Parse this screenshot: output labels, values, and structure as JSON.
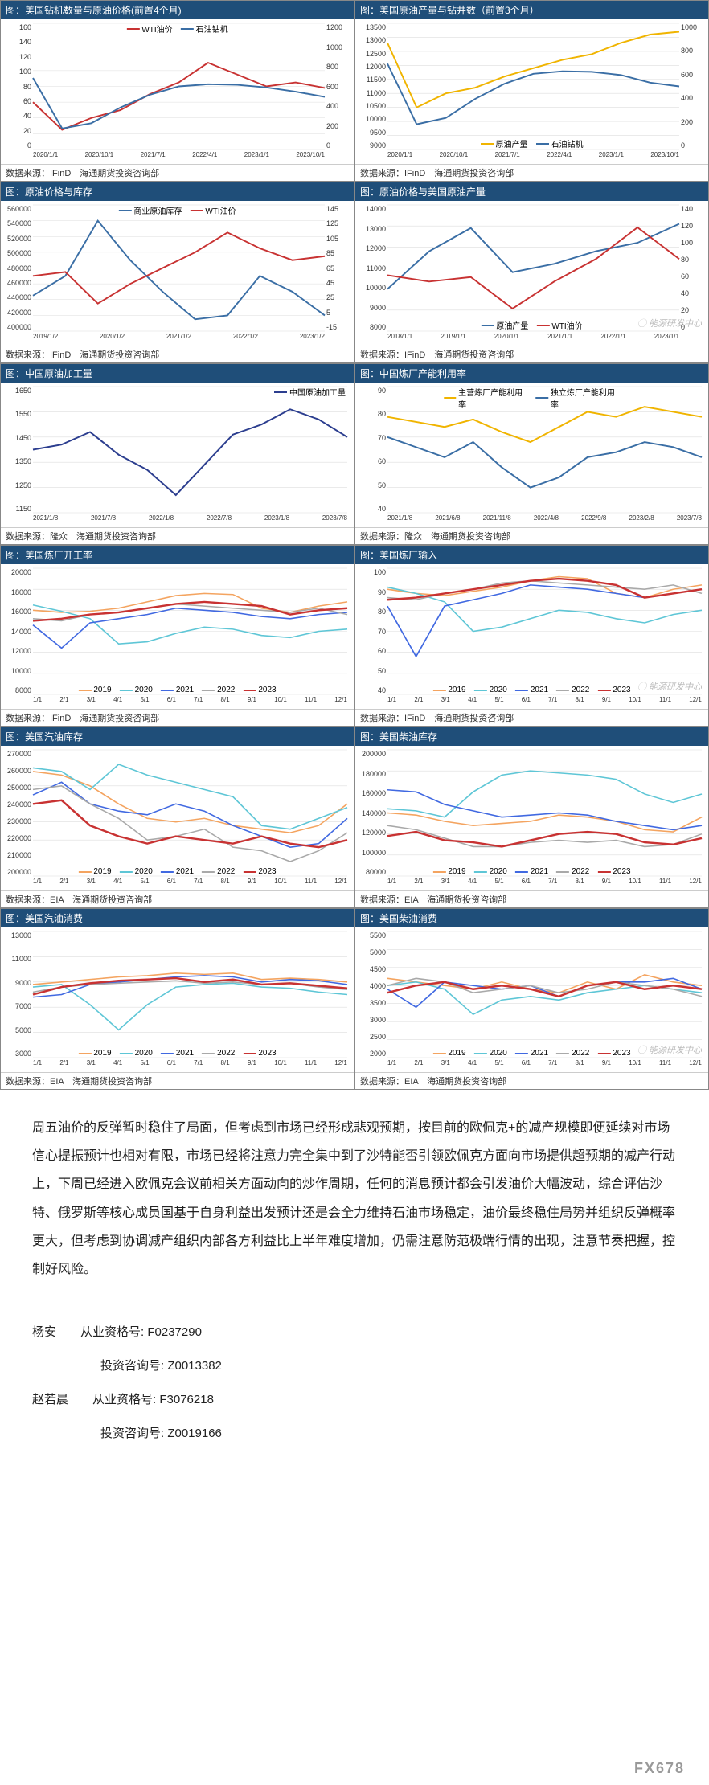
{
  "common": {
    "source_ifind": "数据来源：IFinD　海通期货投资咨询部",
    "source_longzhong": "数据来源：隆众　海通期货投资咨询部",
    "source_eia": "数据来源：EIA　海通期货投资咨询部",
    "watermark": "能源研发中心",
    "fx_watermark": "FX678",
    "months": [
      "1/1",
      "2/1",
      "3/1",
      "4/1",
      "5/1",
      "6/1",
      "7/1",
      "8/1",
      "9/1",
      "10/1",
      "11/1",
      "12/1"
    ],
    "years_legend": {
      "2019": "#f4a460",
      "2020": "#5ec6d6",
      "2021": "#4169e1",
      "2022": "#a9a9a9",
      "2023": "#c83232"
    }
  },
  "charts": [
    {
      "id": "rig_price",
      "title": "图：美国钻机数量与原油价格(前置4个月)",
      "y_left": {
        "min": 0,
        "max": 160,
        "step": 20
      },
      "y_right": {
        "min": 0,
        "max": 1200,
        "step": 200
      },
      "x_labels": [
        "2020/1/1",
        "2020/10/1",
        "2021/7/1",
        "2022/4/1",
        "2023/1/1",
        "2023/10/1"
      ],
      "legend_pos": "top-center",
      "series": [
        {
          "name": "WTI油价",
          "color": "#c83232",
          "axis": "left",
          "data": [
            60,
            25,
            40,
            50,
            70,
            85,
            110,
            95,
            80,
            85,
            78
          ]
        },
        {
          "name": "石油钻机",
          "color": "#3a6ea5",
          "axis": "right",
          "data": [
            680,
            200,
            250,
            400,
            520,
            600,
            620,
            615,
            590,
            550,
            500
          ]
        }
      ],
      "source": "source_ifind"
    },
    {
      "id": "prod_wells",
      "title": "图：美国原油产量与钻井数（前置3个月）",
      "y_left": {
        "min": 9000,
        "max": 13500,
        "step": 500
      },
      "y_right": {
        "min": 0,
        "max": 1000,
        "step": 200
      },
      "x_labels": [
        "2020/1/1",
        "2020/10/1",
        "2021/7/1",
        "2022/4/1",
        "2023/1/1",
        "2023/10/1"
      ],
      "legend_pos": "bottom-center",
      "series": [
        {
          "name": "原油产量",
          "color": "#f0b400",
          "axis": "left",
          "data": [
            12800,
            10500,
            11000,
            11200,
            11600,
            11900,
            12200,
            12400,
            12800,
            13100,
            13200
          ]
        },
        {
          "name": "石油钻机",
          "color": "#3a6ea5",
          "axis": "right",
          "data": [
            680,
            200,
            250,
            400,
            520,
            600,
            620,
            615,
            590,
            530,
            500
          ]
        }
      ],
      "source": "source_ifind"
    },
    {
      "id": "price_inventory",
      "title": "图：原油价格与库存",
      "y_left": {
        "min": 400000,
        "max": 560000,
        "step": 20000
      },
      "y_right": {
        "min": -15,
        "max": 145,
        "step": 20
      },
      "x_labels": [
        "2019/1/2",
        "2020/1/2",
        "2021/1/2",
        "2022/1/2",
        "2023/1/2"
      ],
      "legend_pos": "top-center",
      "series": [
        {
          "name": "商业原油库存",
          "color": "#3a6ea5",
          "axis": "left",
          "data": [
            445000,
            470000,
            540000,
            490000,
            450000,
            415000,
            420000,
            470000,
            450000,
            420000
          ]
        },
        {
          "name": "WTI油价",
          "color": "#c83232",
          "axis": "right",
          "data": [
            55,
            60,
            20,
            45,
            65,
            85,
            110,
            90,
            75,
            80
          ]
        }
      ],
      "source": "source_ifind"
    },
    {
      "id": "price_usprod",
      "title": "图：原油价格与美国原油产量",
      "y_left": {
        "min": 8000,
        "max": 14000,
        "step": 1000
      },
      "y_right": {
        "min": 0,
        "max": 140,
        "step": 20
      },
      "x_labels": [
        "2018/1/1",
        "2019/1/1",
        "2020/1/1",
        "2021/1/1",
        "2022/1/1",
        "2023/1/1"
      ],
      "legend_pos": "bottom-center",
      "series": [
        {
          "name": "原油产量",
          "color": "#3a6ea5",
          "axis": "left",
          "data": [
            10000,
            11800,
            12900,
            10800,
            11200,
            11800,
            12200,
            13100
          ]
        },
        {
          "name": "WTI油价",
          "color": "#c83232",
          "axis": "right",
          "data": [
            62,
            55,
            60,
            25,
            55,
            80,
            115,
            80
          ]
        }
      ],
      "source": "source_ifind",
      "watermark": true
    },
    {
      "id": "china_proc",
      "title": "图：中国原油加工量",
      "y_left": {
        "min": 1150,
        "max": 1650,
        "step": 100
      },
      "x_labels": [
        "2021/1/8",
        "2021/7/8",
        "2022/1/8",
        "2022/7/8",
        "2023/1/8",
        "2023/7/8"
      ],
      "legend_pos": "top-right",
      "series": [
        {
          "name": "中国原油加工量",
          "color": "#2c3e8f",
          "axis": "left",
          "data": [
            1400,
            1420,
            1470,
            1380,
            1320,
            1220,
            1340,
            1460,
            1500,
            1560,
            1520,
            1450
          ]
        }
      ],
      "source": "source_longzhong"
    },
    {
      "id": "china_util",
      "title": "图：中国炼厂产能利用率",
      "y_left": {
        "min": 40,
        "max": 90,
        "step": 10
      },
      "x_labels": [
        "2021/1/8",
        "2021/6/8",
        "2021/11/8",
        "2022/4/8",
        "2022/9/8",
        "2023/2/8",
        "2023/7/8"
      ],
      "legend_pos": "top-center",
      "series": [
        {
          "name": "主营炼厂产能利用率",
          "color": "#f0b400",
          "axis": "left",
          "data": [
            78,
            76,
            74,
            77,
            72,
            68,
            74,
            80,
            78,
            82,
            80,
            78
          ]
        },
        {
          "name": "独立炼厂产能利用率",
          "color": "#3a6ea5",
          "axis": "left",
          "data": [
            70,
            66,
            62,
            68,
            58,
            50,
            54,
            62,
            64,
            68,
            66,
            62
          ]
        }
      ],
      "source": "source_longzhong"
    },
    {
      "id": "us_util",
      "title": "图：美国炼厂开工率",
      "y_left": {
        "min": 8000,
        "max": 20000,
        "step": 2000
      },
      "x_labels": "months",
      "legend_pos": "bottom-center",
      "multi_year": true,
      "series_sets": {
        "2019": [
          16000,
          15800,
          15900,
          16200,
          16800,
          17400,
          17600,
          17500,
          16200,
          15800,
          16400,
          16800
        ],
        "2020": [
          16500,
          15900,
          15200,
          12800,
          13000,
          13800,
          14400,
          14200,
          13600,
          13400,
          14000,
          14200
        ],
        "2021": [
          14600,
          12400,
          14800,
          15200,
          15600,
          16200,
          16000,
          15800,
          15400,
          15200,
          15600,
          15800
        ],
        "2022": [
          15200,
          15000,
          15600,
          15800,
          16200,
          16600,
          16400,
          16200,
          16000,
          15800,
          16200,
          15600
        ],
        "2023": [
          15000,
          15200,
          15600,
          15800,
          16200,
          16600,
          16800,
          16600,
          16400,
          15600,
          16000,
          16200
        ]
      },
      "source": "source_ifind"
    },
    {
      "id": "us_input",
      "title": "图：美国炼厂输入",
      "y_left": {
        "min": 40,
        "max": 100,
        "step": 10
      },
      "x_labels": "months",
      "legend_pos": "bottom-center",
      "multi_year": true,
      "series_sets": {
        "2019": [
          90,
          88,
          87,
          89,
          91,
          94,
          96,
          95,
          88,
          86,
          90,
          92
        ],
        "2020": [
          91,
          88,
          84,
          70,
          72,
          76,
          80,
          79,
          76,
          74,
          78,
          80
        ],
        "2021": [
          82,
          58,
          82,
          85,
          88,
          92,
          91,
          90,
          88,
          86,
          88,
          90
        ],
        "2022": [
          86,
          85,
          88,
          90,
          93,
          94,
          93,
          92,
          91,
          90,
          92,
          88
        ],
        "2023": [
          85,
          86,
          88,
          90,
          92,
          94,
          95,
          94,
          92,
          86,
          88,
          90
        ]
      },
      "source": "source_ifind",
      "watermark": true
    },
    {
      "id": "us_gasoline_inv",
      "title": "图：美国汽油库存",
      "y_left": {
        "min": 200000,
        "max": 270000,
        "step": 10000
      },
      "x_labels": "months",
      "legend_pos": "bottom-center",
      "multi_year": true,
      "series_sets": {
        "2019": [
          258000,
          256000,
          250000,
          240000,
          232000,
          230000,
          232000,
          228000,
          226000,
          224000,
          228000,
          240000
        ],
        "2020": [
          260000,
          258000,
          248000,
          262000,
          256000,
          252000,
          248000,
          244000,
          228000,
          226000,
          232000,
          238000
        ],
        "2021": [
          245000,
          252000,
          240000,
          236000,
          234000,
          240000,
          236000,
          228000,
          222000,
          216000,
          218000,
          232000
        ],
        "2022": [
          248000,
          250000,
          240000,
          232000,
          220000,
          222000,
          226000,
          216000,
          214000,
          208000,
          214000,
          224000
        ],
        "2023": [
          240000,
          242000,
          228000,
          222000,
          218000,
          222000,
          220000,
          218000,
          222000,
          218000,
          216000,
          220000
        ]
      },
      "source": "source_eia"
    },
    {
      "id": "us_diesel_inv",
      "title": "图：美国柴油库存",
      "y_left": {
        "min": 80000,
        "max": 200000,
        "step": 20000
      },
      "x_labels": "months",
      "legend_pos": "bottom-center",
      "multi_year": true,
      "series_sets": {
        "2019": [
          140000,
          138000,
          132000,
          128000,
          130000,
          132000,
          138000,
          136000,
          132000,
          124000,
          122000,
          136000
        ],
        "2020": [
          144000,
          142000,
          136000,
          160000,
          176000,
          180000,
          178000,
          176000,
          172000,
          158000,
          150000,
          158000
        ],
        "2021": [
          162000,
          160000,
          148000,
          142000,
          136000,
          138000,
          140000,
          138000,
          132000,
          128000,
          124000,
          128000
        ],
        "2022": [
          128000,
          124000,
          116000,
          108000,
          108000,
          112000,
          114000,
          112000,
          114000,
          108000,
          110000,
          120000
        ],
        "2023": [
          118000,
          122000,
          114000,
          112000,
          108000,
          114000,
          120000,
          122000,
          120000,
          112000,
          110000,
          116000
        ]
      },
      "source": "source_eia"
    },
    {
      "id": "us_gasoline_cons",
      "title": "图：美国汽油消费",
      "y_left": {
        "min": 3000,
        "max": 13000,
        "step": 2000
      },
      "x_labels": "months",
      "legend_pos": "bottom-center",
      "multi_year": true,
      "series_sets": {
        "2019": [
          8800,
          9000,
          9200,
          9400,
          9500,
          9700,
          9600,
          9700,
          9200,
          9300,
          9200,
          9000
        ],
        "2020": [
          8600,
          8800,
          7200,
          5200,
          7200,
          8600,
          8800,
          8900,
          8600,
          8500,
          8200,
          8000
        ],
        "2021": [
          7800,
          8000,
          8800,
          9000,
          9200,
          9400,
          9500,
          9400,
          9000,
          9200,
          9100,
          8800
        ],
        "2022": [
          8200,
          8600,
          8800,
          8900,
          9000,
          9100,
          8900,
          9000,
          8800,
          8900,
          8600,
          8400
        ],
        "2023": [
          8000,
          8600,
          8900,
          9100,
          9200,
          9300,
          9000,
          9200,
          8800,
          8900,
          8700,
          8500
        ]
      },
      "source": "source_eia"
    },
    {
      "id": "us_diesel_cons",
      "title": "图：美国柴油消费",
      "y_left": {
        "min": 2000,
        "max": 5500,
        "step": 500
      },
      "x_labels": "months",
      "legend_pos": "bottom-center",
      "multi_year": true,
      "series_sets": {
        "2019": [
          4200,
          4100,
          4000,
          3900,
          4100,
          3900,
          3800,
          4100,
          3900,
          4300,
          4100,
          4000
        ],
        "2020": [
          4000,
          4100,
          3900,
          3200,
          3600,
          3700,
          3600,
          3800,
          3900,
          4000,
          3900,
          3800
        ],
        "2021": [
          3900,
          3400,
          4100,
          4000,
          3900,
          4000,
          3700,
          4000,
          4100,
          4100,
          4200,
          3900
        ],
        "2022": [
          4000,
          4200,
          4100,
          3800,
          3900,
          4000,
          3800,
          3900,
          4100,
          4000,
          3900,
          3700
        ],
        "2023": [
          3800,
          4000,
          4100,
          3900,
          4000,
          3900,
          3700,
          4000,
          4100,
          3900,
          4000,
          3900
        ]
      },
      "source": "source_eia",
      "watermark": true
    }
  ],
  "body_text": "周五油价的反弹暂时稳住了局面，但考虑到市场已经形成悲观预期，按目前的欧佩克+的减产规模即便延续对市场信心提振预计也相对有限，市场已经将注意力完全集中到了沙特能否引领欧佩克方面向市场提供超预期的减产行动上，下周已经进入欧佩克会议前相关方面动向的炒作周期，任何的消息预计都会引发油价大幅波动，综合评估沙特、俄罗斯等核心成员国基于自身利益出发预计还是会全力维持石油市场稳定，油价最终稳住局势并组织反弹概率更大，但考虑到协调减产组织内部各方利益比上半年难度增加，仍需注意防范极端行情的出现，注意节奏把握，控制好风险。",
  "authors": [
    {
      "name": "杨安",
      "qual_label": "从业资格号:",
      "qual": "F0237290",
      "adv_label": "投资咨询号:",
      "adv": "Z0013382"
    },
    {
      "name": "赵若晨",
      "qual_label": "从业资格号:",
      "qual": "F3076218",
      "adv_label": "投资咨询号:",
      "adv": "Z0019166"
    }
  ]
}
